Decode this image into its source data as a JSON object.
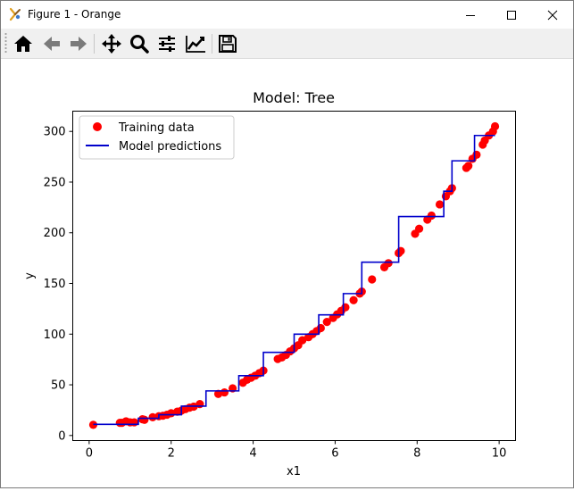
{
  "window": {
    "title": "Figure 1 - Orange",
    "controls": [
      "minimize-icon",
      "maximize-icon",
      "close-icon"
    ]
  },
  "toolbar": {
    "buttons": [
      {
        "name": "home",
        "icon": "home-icon"
      },
      {
        "name": "back",
        "icon": "arrow-left-icon"
      },
      {
        "name": "forward",
        "icon": "arrow-right-icon"
      },
      {
        "name": "pan",
        "icon": "move-icon"
      },
      {
        "name": "zoom",
        "icon": "magnifier-icon"
      },
      {
        "name": "configure-subplots",
        "icon": "sliders-icon"
      },
      {
        "name": "edit-axis",
        "icon": "line-chart-icon"
      },
      {
        "name": "save",
        "icon": "floppy-disk-icon"
      }
    ]
  },
  "chart_data": {
    "type": "scatter",
    "title": "Model: Tree",
    "xlabel": "x1",
    "ylabel": "y",
    "xlim": [
      -0.4,
      10.4
    ],
    "ylim": [
      -5,
      320
    ],
    "xticks": [
      "0",
      "2",
      "4",
      "6",
      "8",
      "10"
    ],
    "yticks": [
      "0",
      "50",
      "100",
      "150",
      "200",
      "250",
      "300"
    ],
    "legend_position": "top-left",
    "series": [
      {
        "name": "Training data",
        "kind": "scatter",
        "color": "#ff0000",
        "points": [
          [
            0.1,
            10.5
          ],
          [
            0.75,
            12.5
          ],
          [
            0.8,
            12.5
          ],
          [
            0.9,
            14
          ],
          [
            1.0,
            13
          ],
          [
            1.1,
            13
          ],
          [
            1.3,
            16
          ],
          [
            1.35,
            15.5
          ],
          [
            1.55,
            18
          ],
          [
            1.7,
            19
          ],
          [
            1.8,
            19.5
          ],
          [
            1.9,
            20.5
          ],
          [
            2.0,
            22
          ],
          [
            2.15,
            23.5
          ],
          [
            2.25,
            24.5
          ],
          [
            2.35,
            26
          ],
          [
            2.45,
            27.5
          ],
          [
            2.55,
            28.5
          ],
          [
            2.7,
            31
          ],
          [
            3.15,
            41
          ],
          [
            3.3,
            42.5
          ],
          [
            3.5,
            46.5
          ],
          [
            3.75,
            52
          ],
          [
            3.85,
            55
          ],
          [
            3.95,
            57
          ],
          [
            4.05,
            59
          ],
          [
            4.15,
            61.5
          ],
          [
            4.25,
            64
          ],
          [
            4.6,
            75.5
          ],
          [
            4.7,
            77
          ],
          [
            4.8,
            79.5
          ],
          [
            4.9,
            83
          ],
          [
            5.0,
            86
          ],
          [
            5.1,
            89
          ],
          [
            5.2,
            94
          ],
          [
            5.35,
            97
          ],
          [
            5.45,
            100
          ],
          [
            5.55,
            103
          ],
          [
            5.65,
            106
          ],
          [
            5.8,
            112
          ],
          [
            5.95,
            116
          ],
          [
            6.05,
            119.5
          ],
          [
            6.15,
            123
          ],
          [
            6.25,
            126.5
          ],
          [
            6.45,
            133.5
          ],
          [
            6.6,
            140
          ],
          [
            6.65,
            142
          ],
          [
            6.9,
            154
          ],
          [
            7.2,
            166
          ],
          [
            7.3,
            170
          ],
          [
            7.55,
            180
          ],
          [
            7.6,
            182
          ],
          [
            7.95,
            199
          ],
          [
            8.05,
            204
          ],
          [
            8.25,
            213
          ],
          [
            8.35,
            217
          ],
          [
            8.55,
            228
          ],
          [
            8.7,
            236
          ],
          [
            8.8,
            241
          ],
          [
            8.85,
            244
          ],
          [
            9.2,
            264
          ],
          [
            9.25,
            266
          ],
          [
            9.35,
            273
          ],
          [
            9.45,
            277
          ],
          [
            9.6,
            287
          ],
          [
            9.65,
            291
          ],
          [
            9.75,
            296
          ],
          [
            9.85,
            300
          ],
          [
            9.9,
            305
          ]
        ]
      },
      {
        "name": "Model predictions",
        "kind": "step-line",
        "color": "#0000cc",
        "points": [
          [
            0.1,
            11
          ],
          [
            1.2,
            11
          ],
          [
            1.2,
            17
          ],
          [
            1.7,
            17
          ],
          [
            1.7,
            20.5
          ],
          [
            2.25,
            20.5
          ],
          [
            2.25,
            29
          ],
          [
            2.85,
            29
          ],
          [
            2.85,
            44
          ],
          [
            3.65,
            44
          ],
          [
            3.65,
            59
          ],
          [
            4.25,
            59
          ],
          [
            4.25,
            82
          ],
          [
            5.0,
            82
          ],
          [
            5.0,
            100
          ],
          [
            5.6,
            100
          ],
          [
            5.6,
            119
          ],
          [
            6.2,
            119
          ],
          [
            6.2,
            140
          ],
          [
            6.65,
            140
          ],
          [
            6.65,
            171
          ],
          [
            7.55,
            171
          ],
          [
            7.55,
            216
          ],
          [
            8.65,
            216
          ],
          [
            8.65,
            241
          ],
          [
            8.85,
            241
          ],
          [
            8.85,
            271
          ],
          [
            9.4,
            271
          ],
          [
            9.4,
            296
          ],
          [
            9.9,
            296
          ]
        ]
      }
    ]
  }
}
